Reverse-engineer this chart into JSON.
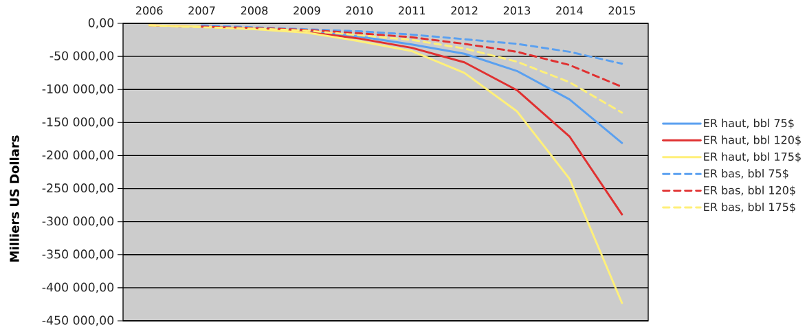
{
  "chart_data": {
    "type": "line",
    "ylabel": "Milliers US Dollars",
    "categories": [
      "2006",
      "2007",
      "2008",
      "2009",
      "2010",
      "2011",
      "2012",
      "2013",
      "2014",
      "2015"
    ],
    "series": [
      {
        "name": "ER haut, bbl 75$",
        "color": "#5aa0f0",
        "line_style": "solid",
        "values": [
          null,
          null,
          -8000,
          -12000,
          -20000,
          -32000,
          -46000,
          -72000,
          -115000,
          -181000
        ]
      },
      {
        "name": "ER haut, bbl 120$",
        "color": "#e03030",
        "line_style": "solid",
        "values": [
          -3000,
          -5000,
          -8000,
          -13000,
          -23000,
          -37000,
          -59000,
          -101000,
          -171000,
          -289000
        ]
      },
      {
        "name": "ER haut, bbl 175$",
        "color": "#fff07a",
        "line_style": "solid",
        "values": [
          -3000,
          -5000,
          -9000,
          -14000,
          -27000,
          -42000,
          -75000,
          -133000,
          -235000,
          -423000
        ]
      },
      {
        "name": "ER bas, bbl 75$",
        "color": "#5aa0f0",
        "line_style": "dashed",
        "values": [
          null,
          -3000,
          -6000,
          -9000,
          -12000,
          -17000,
          -24000,
          -31000,
          -43000,
          -61000
        ]
      },
      {
        "name": "ER bas, bbl 120$",
        "color": "#e03030",
        "line_style": "dashed",
        "values": [
          null,
          -5000,
          -7000,
          -10000,
          -15000,
          -21000,
          -31000,
          -43000,
          -63000,
          -96000
        ]
      },
      {
        "name": "ER bas, bbl 175$",
        "color": "#fff07a",
        "line_style": "dashed",
        "values": [
          -3000,
          -6000,
          -8000,
          -11000,
          -18000,
          -25000,
          -38000,
          -58000,
          -89000,
          -135000
        ]
      }
    ],
    "ylim": [
      -450000,
      0
    ],
    "yticks": [
      {
        "value": 0,
        "label": "0,00"
      },
      {
        "value": -50000,
        "label": "-50 000,00"
      },
      {
        "value": -100000,
        "label": "-100 000,00"
      },
      {
        "value": -150000,
        "label": "-150 000,00"
      },
      {
        "value": -200000,
        "label": "-200 000,00"
      },
      {
        "value": -250000,
        "label": "-250 000,00"
      },
      {
        "value": -300000,
        "label": "-300 000,00"
      },
      {
        "value": -350000,
        "label": "-350 000,00"
      },
      {
        "value": -400000,
        "label": "-400 000,00"
      },
      {
        "value": -450000,
        "label": "-450 000,00"
      }
    ],
    "grid": "y",
    "legend": "right"
  }
}
